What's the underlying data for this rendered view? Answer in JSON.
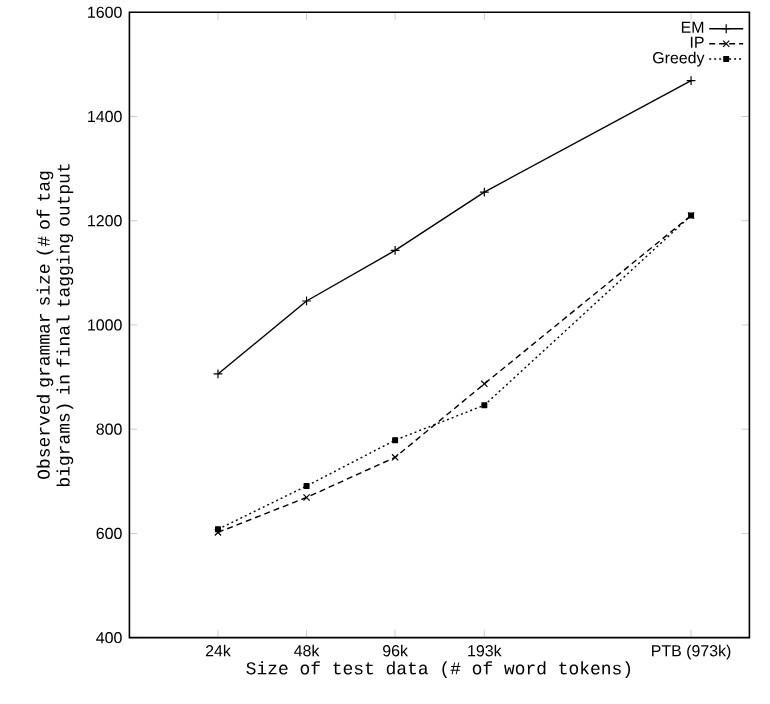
{
  "chart_data": {
    "type": "line",
    "xlabel": "Size of test data (# of word tokens)",
    "ylabel": "Observed grammar size (# of tag bigrams) in final tagging output",
    "log": "x",
    "x": [
      24,
      48,
      96,
      193,
      973
    ],
    "xlim": [
      12,
      1536
    ],
    "xticks": [
      {
        "value": 24,
        "label": "24k"
      },
      {
        "value": 48,
        "label": "48k"
      },
      {
        "value": 96,
        "label": "96k"
      },
      {
        "value": 193,
        "label": "193k"
      },
      {
        "value": 973,
        "label": "PTB (973k)"
      }
    ],
    "ylim": [
      400,
      1600
    ],
    "yticks": [
      400,
      600,
      800,
      1000,
      1200,
      1400,
      1600
    ],
    "grid": false,
    "legend": "top right",
    "series": [
      {
        "name": "EM",
        "color": "#000000",
        "marker": "cross",
        "line_style": "solid",
        "values": [
          906,
          1046,
          1143,
          1255,
          1469
        ]
      },
      {
        "name": "IP",
        "color": "#000000",
        "marker": "x",
        "line_style": "dashed",
        "values": [
          602,
          669,
          746,
          887,
          1210
        ]
      },
      {
        "name": "Greedy",
        "color": "#000000",
        "marker": "square",
        "line_style": "dotted",
        "values": [
          608,
          691,
          779,
          846,
          1210
        ]
      }
    ]
  }
}
